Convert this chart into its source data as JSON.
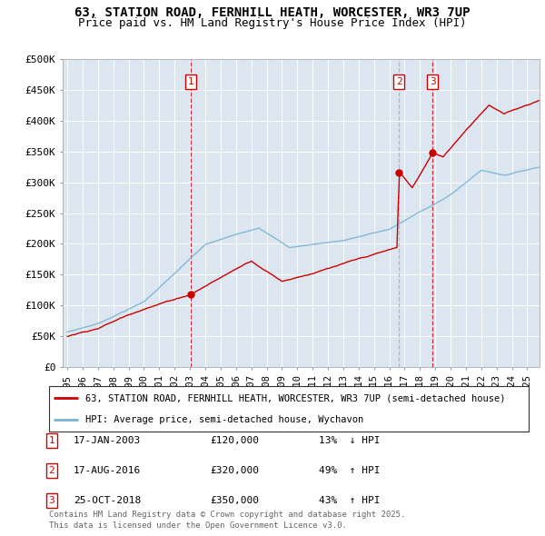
{
  "title": "63, STATION ROAD, FERNHILL HEATH, WORCESTER, WR3 7UP",
  "subtitle": "Price paid vs. HM Land Registry's House Price Index (HPI)",
  "ylim": [
    0,
    500000
  ],
  "yticks": [
    0,
    50000,
    100000,
    150000,
    200000,
    250000,
    300000,
    350000,
    400000,
    450000,
    500000
  ],
  "ytick_labels": [
    "£0",
    "£50K",
    "£100K",
    "£150K",
    "£200K",
    "£250K",
    "£300K",
    "£350K",
    "£400K",
    "£450K",
    "£500K"
  ],
  "xlim_start": 1994.7,
  "xlim_end": 2025.8,
  "fig_bg_color": "#ffffff",
  "plot_bg_color": "#dce6f1",
  "hpi_color": "#7ab3d4",
  "price_color": "#cc0000",
  "legend_line1": "63, STATION ROAD, FERNHILL HEATH, WORCESTER, WR3 7UP (semi-detached house)",
  "legend_line2": "HPI: Average price, semi-detached house, Wychavon",
  "transactions": [
    {
      "num": 1,
      "date": "17-JAN-2003",
      "price": 120000,
      "hpi_pct": "13%",
      "hpi_dir": "↓",
      "x_year": 2003.04,
      "vline_color": "#cc0000"
    },
    {
      "num": 2,
      "date": "17-AUG-2016",
      "price": 320000,
      "hpi_pct": "49%",
      "hpi_dir": "↑",
      "x_year": 2016.63,
      "vline_color": "#aaaaaa"
    },
    {
      "num": 3,
      "date": "25-OCT-2018",
      "price": 350000,
      "hpi_pct": "43%",
      "hpi_dir": "↑",
      "x_year": 2018.82,
      "vline_color": "#cc0000"
    }
  ],
  "footer_line1": "Contains HM Land Registry data © Crown copyright and database right 2025.",
  "footer_line2": "This data is licensed under the Open Government Licence v3.0."
}
